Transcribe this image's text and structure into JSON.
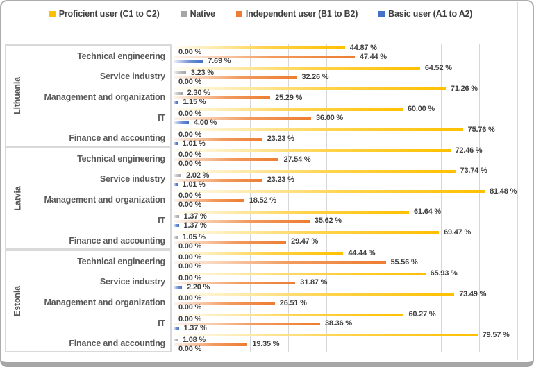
{
  "legend": [
    {
      "label": "Proficient user (C1 to C2)",
      "color": "#FFC000",
      "slug": "proficient"
    },
    {
      "label": "Native",
      "color": "#A5A5A5",
      "slug": "native"
    },
    {
      "label": "Independent user (B1 to B2)",
      "color": "#ED7D31",
      "slug": "independent"
    },
    {
      "label": "Basic user (A1 to A2)",
      "color": "#4472C4",
      "slug": "basic"
    }
  ],
  "chart_data": {
    "type": "bar",
    "orientation": "horizontal",
    "unit": "%",
    "value_label_format": "0.00 %",
    "xlim": [
      0,
      90
    ],
    "gridline_step": 10,
    "grid": true,
    "legend_position": "top",
    "series_names": [
      "Proficient user (C1 to C2)",
      "Native",
      "Independent user (B1 to B2)",
      "Basic user (A1 to A2)"
    ],
    "series_slugs": [
      "proficient",
      "native",
      "independent",
      "basic"
    ],
    "series_colors": [
      "#FFC000",
      "#A5A5A5",
      "#ED7D31",
      "#4472C4"
    ],
    "categories": [
      "Technical engineering",
      "Service industry",
      "Management and organization",
      "IT",
      "Finance and accounting"
    ],
    "groups": [
      {
        "name": "Lithuania",
        "rows": [
          {
            "category": "Technical engineering",
            "values": [
              44.87,
              0.0,
              47.44,
              7.69
            ]
          },
          {
            "category": "Service industry",
            "values": [
              64.52,
              3.23,
              32.26,
              0.0
            ]
          },
          {
            "category": "Management and organization",
            "values": [
              71.26,
              2.3,
              25.29,
              1.15
            ]
          },
          {
            "category": "IT",
            "values": [
              60.0,
              0.0,
              36.0,
              4.0
            ]
          },
          {
            "category": "Finance and accounting",
            "values": [
              75.76,
              0.0,
              23.23,
              1.01
            ]
          }
        ]
      },
      {
        "name": "Latvia",
        "rows": [
          {
            "category": "Technical engineering",
            "values": [
              72.46,
              0.0,
              27.54,
              0.0
            ]
          },
          {
            "category": "Service industry",
            "values": [
              73.74,
              2.02,
              23.23,
              1.01
            ]
          },
          {
            "category": "Management and organization",
            "values": [
              81.48,
              0.0,
              18.52,
              0.0
            ]
          },
          {
            "category": "IT",
            "values": [
              61.64,
              1.37,
              35.62,
              1.37
            ]
          },
          {
            "category": "Finance and accounting",
            "values": [
              69.47,
              1.05,
              29.47,
              0.0
            ]
          }
        ]
      },
      {
        "name": "Estonia",
        "rows": [
          {
            "category": "Technical engineering",
            "values": [
              44.44,
              0.0,
              55.56,
              0.0
            ]
          },
          {
            "category": "Service industry",
            "values": [
              65.93,
              0.0,
              31.87,
              2.2
            ]
          },
          {
            "category": "Management and organization",
            "values": [
              73.49,
              0.0,
              26.51,
              0.0
            ]
          },
          {
            "category": "IT",
            "values": [
              60.27,
              0.0,
              38.36,
              1.37
            ]
          },
          {
            "category": "Finance and accounting",
            "values": [
              79.57,
              1.08,
              19.35,
              0.0
            ]
          }
        ]
      }
    ]
  }
}
